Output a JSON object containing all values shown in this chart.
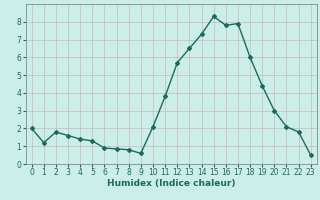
{
  "x": [
    0,
    1,
    2,
    3,
    4,
    5,
    6,
    7,
    8,
    9,
    10,
    11,
    12,
    13,
    14,
    15,
    16,
    17,
    18,
    19,
    20,
    21,
    22,
    23
  ],
  "y": [
    2.0,
    1.2,
    1.8,
    1.6,
    1.4,
    1.3,
    0.9,
    0.85,
    0.8,
    0.6,
    2.1,
    3.8,
    5.7,
    6.5,
    7.3,
    8.3,
    7.8,
    7.9,
    6.0,
    4.4,
    3.0,
    2.1,
    1.8,
    0.5
  ],
  "line_color": "#1a6b5a",
  "bg_color": "#cceee8",
  "grid_color": "#c8b8b8",
  "xlabel": "Humidex (Indice chaleur)",
  "xlim": [
    -0.5,
    23.5
  ],
  "ylim": [
    0,
    9
  ],
  "yticks": [
    0,
    1,
    2,
    3,
    4,
    5,
    6,
    7,
    8
  ],
  "xticks": [
    0,
    1,
    2,
    3,
    4,
    5,
    6,
    7,
    8,
    9,
    10,
    11,
    12,
    13,
    14,
    15,
    16,
    17,
    18,
    19,
    20,
    21,
    22,
    23
  ],
  "marker": "D",
  "markersize": 2.0,
  "linewidth": 1.0,
  "tick_fontsize": 5.5,
  "xlabel_fontsize": 6.5
}
